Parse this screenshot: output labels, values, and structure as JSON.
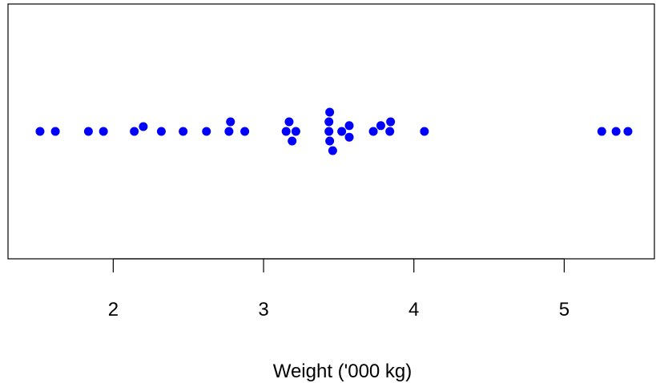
{
  "chart_data": {
    "type": "scatter",
    "title": "",
    "xlabel": "Weight ('000 kg)",
    "ylabel": "",
    "xlim": [
      1.3,
      5.6
    ],
    "xticks": [
      "2",
      "3",
      "4",
      "5"
    ],
    "grid": false,
    "series": [
      {
        "color": "#0000ff",
        "points": [
          {
            "x": 1.513,
            "y": 0.0
          },
          {
            "x": 1.615,
            "y": 0.0
          },
          {
            "x": 1.835,
            "y": 0.0
          },
          {
            "x": 1.935,
            "y": 0.0
          },
          {
            "x": 2.14,
            "y": 0.0
          },
          {
            "x": 2.2,
            "y": 0.5
          },
          {
            "x": 2.32,
            "y": 0.0
          },
          {
            "x": 2.465,
            "y": 0.0
          },
          {
            "x": 2.62,
            "y": 0.0
          },
          {
            "x": 2.77,
            "y": 0.0
          },
          {
            "x": 2.78,
            "y": 1.0
          },
          {
            "x": 2.875,
            "y": 0.0
          },
          {
            "x": 3.15,
            "y": 0.0
          },
          {
            "x": 3.17,
            "y": 1.0
          },
          {
            "x": 3.19,
            "y": -1.0
          },
          {
            "x": 3.215,
            "y": 0.0
          },
          {
            "x": 3.435,
            "y": 0.0
          },
          {
            "x": 3.435,
            "y": 1.0
          },
          {
            "x": 3.44,
            "y": 2.0
          },
          {
            "x": 3.44,
            "y": -1.0
          },
          {
            "x": 3.46,
            "y": -2.0
          },
          {
            "x": 3.52,
            "y": 0.0
          },
          {
            "x": 3.57,
            "y": 0.6
          },
          {
            "x": 3.57,
            "y": -0.6
          },
          {
            "x": 3.73,
            "y": 0.0
          },
          {
            "x": 3.78,
            "y": 0.6
          },
          {
            "x": 3.84,
            "y": 0.0
          },
          {
            "x": 3.845,
            "y": 1.0
          },
          {
            "x": 4.07,
            "y": 0.0
          },
          {
            "x": 5.25,
            "y": 0.0
          },
          {
            "x": 5.345,
            "y": 0.0
          },
          {
            "x": 5.424,
            "y": 0.0
          }
        ]
      }
    ]
  }
}
